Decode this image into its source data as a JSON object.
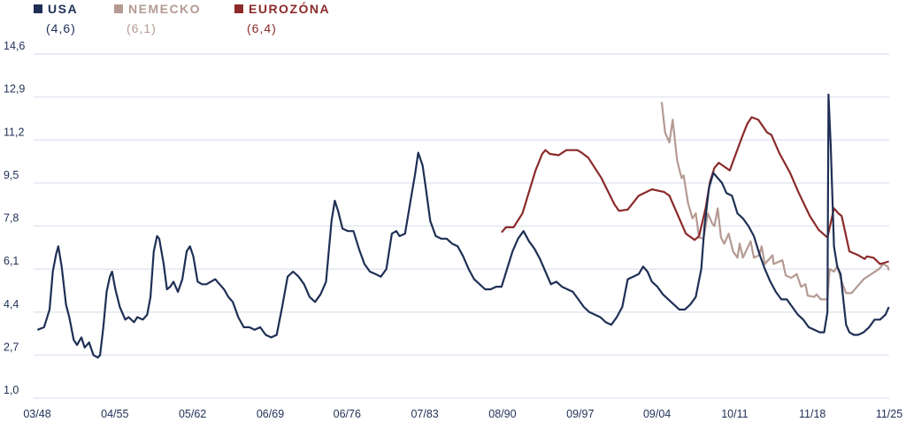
{
  "chart_data": {
    "type": "line",
    "title": "",
    "xlabel": "",
    "ylabel": "",
    "ylim": [
      1.0,
      14.6
    ],
    "xlim": [
      1948.17,
      2025.83
    ],
    "grid": true,
    "legend_placement": "top-left",
    "y_ticks": [
      "1,0",
      "2,7",
      "4,4",
      "6,1",
      "7,8",
      "9,5",
      "11,2",
      "12,9",
      "14,6"
    ],
    "y_tick_values": [
      1.0,
      2.7,
      4.4,
      6.1,
      7.8,
      9.5,
      11.2,
      12.9,
      14.6
    ],
    "x_ticks": [
      "03/48",
      "04/55",
      "05/62",
      "06/69",
      "06/76",
      "07/83",
      "08/90",
      "09/97",
      "09/04",
      "10/11",
      "11/18",
      "11/25"
    ],
    "x_tick_values": [
      1948.17,
      1955.25,
      1962.33,
      1969.42,
      1976.42,
      1983.5,
      1990.58,
      1997.67,
      2004.67,
      2011.75,
      2018.83,
      2025.83
    ],
    "series": [
      {
        "name": "USA",
        "latest": "(4,6)",
        "color": "#1f2f55",
        "points": [
          [
            1948.2,
            3.7
          ],
          [
            1948.8,
            3.8
          ],
          [
            1949.3,
            4.5
          ],
          [
            1949.6,
            6.0
          ],
          [
            1949.9,
            6.7
          ],
          [
            1950.1,
            7.0
          ],
          [
            1950.4,
            6.2
          ],
          [
            1950.8,
            4.7
          ],
          [
            1951.1,
            4.2
          ],
          [
            1951.5,
            3.3
          ],
          [
            1951.8,
            3.1
          ],
          [
            1952.2,
            3.4
          ],
          [
            1952.5,
            3.0
          ],
          [
            1952.9,
            3.2
          ],
          [
            1953.3,
            2.7
          ],
          [
            1953.7,
            2.6
          ],
          [
            1953.9,
            2.7
          ],
          [
            1954.2,
            3.8
          ],
          [
            1954.5,
            5.2
          ],
          [
            1954.8,
            5.8
          ],
          [
            1955.0,
            6.0
          ],
          [
            1955.3,
            5.3
          ],
          [
            1955.7,
            4.6
          ],
          [
            1956.2,
            4.1
          ],
          [
            1956.5,
            4.2
          ],
          [
            1957.0,
            4.0
          ],
          [
            1957.3,
            4.2
          ],
          [
            1957.8,
            4.1
          ],
          [
            1958.2,
            4.3
          ],
          [
            1958.5,
            5.0
          ],
          [
            1958.8,
            6.8
          ],
          [
            1959.1,
            7.4
          ],
          [
            1959.3,
            7.3
          ],
          [
            1959.7,
            6.3
          ],
          [
            1960.0,
            5.3
          ],
          [
            1960.3,
            5.4
          ],
          [
            1960.6,
            5.6
          ],
          [
            1961.0,
            5.2
          ],
          [
            1961.4,
            5.7
          ],
          [
            1961.8,
            6.8
          ],
          [
            1962.1,
            7.0
          ],
          [
            1962.4,
            6.6
          ],
          [
            1962.8,
            5.6
          ],
          [
            1963.2,
            5.5
          ],
          [
            1963.6,
            5.5
          ],
          [
            1964.0,
            5.6
          ],
          [
            1964.4,
            5.7
          ],
          [
            1964.8,
            5.5
          ],
          [
            1965.2,
            5.3
          ],
          [
            1965.6,
            5.0
          ],
          [
            1966.0,
            4.8
          ],
          [
            1966.5,
            4.2
          ],
          [
            1967.0,
            3.8
          ],
          [
            1967.5,
            3.8
          ],
          [
            1968.0,
            3.7
          ],
          [
            1968.5,
            3.8
          ],
          [
            1969.0,
            3.5
          ],
          [
            1969.5,
            3.4
          ],
          [
            1970.0,
            3.5
          ],
          [
            1970.5,
            4.6
          ],
          [
            1971.0,
            5.8
          ],
          [
            1971.5,
            6.0
          ],
          [
            1972.0,
            5.8
          ],
          [
            1972.5,
            5.5
          ],
          [
            1973.0,
            5.0
          ],
          [
            1973.5,
            4.8
          ],
          [
            1974.0,
            5.1
          ],
          [
            1974.5,
            5.6
          ],
          [
            1975.0,
            8.0
          ],
          [
            1975.3,
            8.8
          ],
          [
            1975.6,
            8.4
          ],
          [
            1976.0,
            7.7
          ],
          [
            1976.5,
            7.6
          ],
          [
            1977.0,
            7.6
          ],
          [
            1977.5,
            6.9
          ],
          [
            1978.0,
            6.3
          ],
          [
            1978.5,
            6.0
          ],
          [
            1979.0,
            5.9
          ],
          [
            1979.5,
            5.8
          ],
          [
            1980.0,
            6.1
          ],
          [
            1980.5,
            7.5
          ],
          [
            1980.9,
            7.6
          ],
          [
            1981.2,
            7.4
          ],
          [
            1981.7,
            7.5
          ],
          [
            1982.2,
            8.8
          ],
          [
            1982.6,
            9.8
          ],
          [
            1982.9,
            10.7
          ],
          [
            1983.3,
            10.2
          ],
          [
            1983.6,
            9.3
          ],
          [
            1984.0,
            8.0
          ],
          [
            1984.5,
            7.4
          ],
          [
            1985.0,
            7.3
          ],
          [
            1985.5,
            7.3
          ],
          [
            1986.0,
            7.1
          ],
          [
            1986.5,
            7.0
          ],
          [
            1987.0,
            6.6
          ],
          [
            1987.5,
            6.1
          ],
          [
            1988.0,
            5.7
          ],
          [
            1988.5,
            5.5
          ],
          [
            1989.0,
            5.3
          ],
          [
            1989.5,
            5.3
          ],
          [
            1990.0,
            5.4
          ],
          [
            1990.5,
            5.4
          ],
          [
            1991.0,
            6.1
          ],
          [
            1991.5,
            6.8
          ],
          [
            1992.0,
            7.3
          ],
          [
            1992.5,
            7.6
          ],
          [
            1993.0,
            7.2
          ],
          [
            1993.5,
            6.9
          ],
          [
            1994.0,
            6.5
          ],
          [
            1994.5,
            6.0
          ],
          [
            1995.0,
            5.5
          ],
          [
            1995.5,
            5.6
          ],
          [
            1996.0,
            5.4
          ],
          [
            1996.5,
            5.3
          ],
          [
            1997.0,
            5.2
          ],
          [
            1997.5,
            4.9
          ],
          [
            1998.0,
            4.6
          ],
          [
            1998.5,
            4.4
          ],
          [
            1999.0,
            4.3
          ],
          [
            1999.5,
            4.2
          ],
          [
            2000.0,
            4.0
          ],
          [
            2000.5,
            3.9
          ],
          [
            2001.0,
            4.2
          ],
          [
            2001.5,
            4.6
          ],
          [
            2002.0,
            5.7
          ],
          [
            2002.5,
            5.8
          ],
          [
            2003.0,
            5.9
          ],
          [
            2003.4,
            6.2
          ],
          [
            2003.8,
            6.0
          ],
          [
            2004.2,
            5.6
          ],
          [
            2004.7,
            5.4
          ],
          [
            2005.2,
            5.1
          ],
          [
            2005.7,
            4.9
          ],
          [
            2006.2,
            4.7
          ],
          [
            2006.7,
            4.5
          ],
          [
            2007.2,
            4.5
          ],
          [
            2007.7,
            4.7
          ],
          [
            2008.2,
            5.0
          ],
          [
            2008.7,
            6.1
          ],
          [
            2009.0,
            7.8
          ],
          [
            2009.4,
            9.3
          ],
          [
            2009.8,
            9.9
          ],
          [
            2010.2,
            9.7
          ],
          [
            2010.6,
            9.5
          ],
          [
            2011.0,
            9.1
          ],
          [
            2011.5,
            9.0
          ],
          [
            2012.0,
            8.3
          ],
          [
            2012.5,
            8.1
          ],
          [
            2013.0,
            7.8
          ],
          [
            2013.5,
            7.4
          ],
          [
            2014.0,
            6.7
          ],
          [
            2014.5,
            6.1
          ],
          [
            2015.0,
            5.6
          ],
          [
            2015.5,
            5.2
          ],
          [
            2016.0,
            4.9
          ],
          [
            2016.5,
            4.9
          ],
          [
            2017.0,
            4.6
          ],
          [
            2017.5,
            4.3
          ],
          [
            2018.0,
            4.1
          ],
          [
            2018.5,
            3.8
          ],
          [
            2019.0,
            3.7
          ],
          [
            2019.5,
            3.6
          ],
          [
            2019.9,
            3.6
          ],
          [
            2020.2,
            4.4
          ],
          [
            2020.3,
            13.0
          ],
          [
            2020.5,
            11.0
          ],
          [
            2020.8,
            7.0
          ],
          [
            2021.1,
            6.2
          ],
          [
            2021.4,
            5.9
          ],
          [
            2021.7,
            4.7
          ],
          [
            2021.9,
            3.9
          ],
          [
            2022.2,
            3.6
          ],
          [
            2022.6,
            3.5
          ],
          [
            2023.0,
            3.5
          ],
          [
            2023.5,
            3.6
          ],
          [
            2024.0,
            3.8
          ],
          [
            2024.5,
            4.1
          ],
          [
            2025.0,
            4.1
          ],
          [
            2025.5,
            4.3
          ],
          [
            2025.8,
            4.6
          ]
        ]
      },
      {
        "name": "NEMECKO",
        "latest": "(6,1)",
        "color": "#b59a93",
        "points": [
          [
            2005.1,
            12.7
          ],
          [
            2005.4,
            11.5
          ],
          [
            2005.8,
            11.1
          ],
          [
            2006.1,
            12.0
          ],
          [
            2006.5,
            10.4
          ],
          [
            2006.9,
            9.7
          ],
          [
            2007.1,
            9.8
          ],
          [
            2007.5,
            8.7
          ],
          [
            2007.9,
            8.1
          ],
          [
            2008.2,
            8.3
          ],
          [
            2008.5,
            7.35
          ],
          [
            2008.9,
            7.3
          ],
          [
            2009.3,
            8.3
          ],
          [
            2009.7,
            7.9
          ],
          [
            2009.9,
            7.8
          ],
          [
            2010.2,
            8.5
          ],
          [
            2010.5,
            7.35
          ],
          [
            2010.8,
            7.1
          ],
          [
            2011.2,
            7.5
          ],
          [
            2011.6,
            6.8
          ],
          [
            2012.0,
            6.55
          ],
          [
            2012.2,
            7.1
          ],
          [
            2012.5,
            6.55
          ],
          [
            2013.2,
            7.2
          ],
          [
            2013.5,
            6.55
          ],
          [
            2014.0,
            6.65
          ],
          [
            2014.2,
            7.0
          ],
          [
            2014.5,
            6.3
          ],
          [
            2015.2,
            6.65
          ],
          [
            2015.3,
            6.3
          ],
          [
            2016.1,
            6.45
          ],
          [
            2016.4,
            5.85
          ],
          [
            2016.9,
            5.75
          ],
          [
            2017.4,
            5.9
          ],
          [
            2017.8,
            5.4
          ],
          [
            2018.2,
            5.5
          ],
          [
            2018.4,
            5.05
          ],
          [
            2019.0,
            5.0
          ],
          [
            2019.2,
            5.1
          ],
          [
            2019.6,
            4.9
          ],
          [
            2020.2,
            4.9
          ],
          [
            2020.4,
            6.1
          ],
          [
            2020.8,
            6.0
          ],
          [
            2021.1,
            6.2
          ],
          [
            2021.5,
            5.6
          ],
          [
            2021.9,
            5.15
          ],
          [
            2022.4,
            5.15
          ],
          [
            2023.0,
            5.45
          ],
          [
            2023.5,
            5.7
          ],
          [
            2024.2,
            5.9
          ],
          [
            2024.9,
            6.1
          ],
          [
            2025.3,
            6.3
          ],
          [
            2025.7,
            6.2
          ],
          [
            2025.8,
            6.05
          ]
        ]
      },
      {
        "name": "EUROZÓNA",
        "latest": "(6,4)",
        "color": "#8b2a2a",
        "points": [
          [
            1990.5,
            7.55
          ],
          [
            1990.9,
            7.75
          ],
          [
            1991.6,
            7.75
          ],
          [
            1992.4,
            8.3
          ],
          [
            1993.0,
            9.15
          ],
          [
            1993.6,
            10.0
          ],
          [
            1994.2,
            10.65
          ],
          [
            1994.5,
            10.8
          ],
          [
            1994.9,
            10.65
          ],
          [
            1995.7,
            10.6
          ],
          [
            1996.4,
            10.8
          ],
          [
            1997.4,
            10.8
          ],
          [
            1997.8,
            10.7
          ],
          [
            1998.4,
            10.5
          ],
          [
            1999.6,
            9.7
          ],
          [
            2000.8,
            8.65
          ],
          [
            2001.2,
            8.4
          ],
          [
            2002.0,
            8.45
          ],
          [
            2003.0,
            9.0
          ],
          [
            2004.2,
            9.25
          ],
          [
            2005.3,
            9.15
          ],
          [
            2005.8,
            9.0
          ],
          [
            2006.3,
            8.5
          ],
          [
            2007.3,
            7.5
          ],
          [
            2008.1,
            7.25
          ],
          [
            2008.5,
            7.4
          ],
          [
            2009.1,
            8.5
          ],
          [
            2009.5,
            9.55
          ],
          [
            2009.9,
            10.1
          ],
          [
            2010.3,
            10.3
          ],
          [
            2011.3,
            10.0
          ],
          [
            2012.4,
            11.3
          ],
          [
            2012.9,
            11.85
          ],
          [
            2013.3,
            12.1
          ],
          [
            2013.9,
            12.0
          ],
          [
            2014.7,
            11.5
          ],
          [
            2015.1,
            11.4
          ],
          [
            2015.8,
            10.7
          ],
          [
            2016.8,
            9.9
          ],
          [
            2017.6,
            9.1
          ],
          [
            2018.6,
            8.2
          ],
          [
            2019.4,
            7.65
          ],
          [
            2020.2,
            7.35
          ],
          [
            2020.8,
            8.5
          ],
          [
            2021.2,
            8.3
          ],
          [
            2021.5,
            8.2
          ],
          [
            2022.2,
            6.8
          ],
          [
            2023.0,
            6.65
          ],
          [
            2023.6,
            6.5
          ],
          [
            2023.8,
            6.6
          ],
          [
            2024.4,
            6.55
          ],
          [
            2025.0,
            6.3
          ],
          [
            2025.4,
            6.35
          ],
          [
            2025.8,
            6.4
          ]
        ]
      }
    ]
  }
}
